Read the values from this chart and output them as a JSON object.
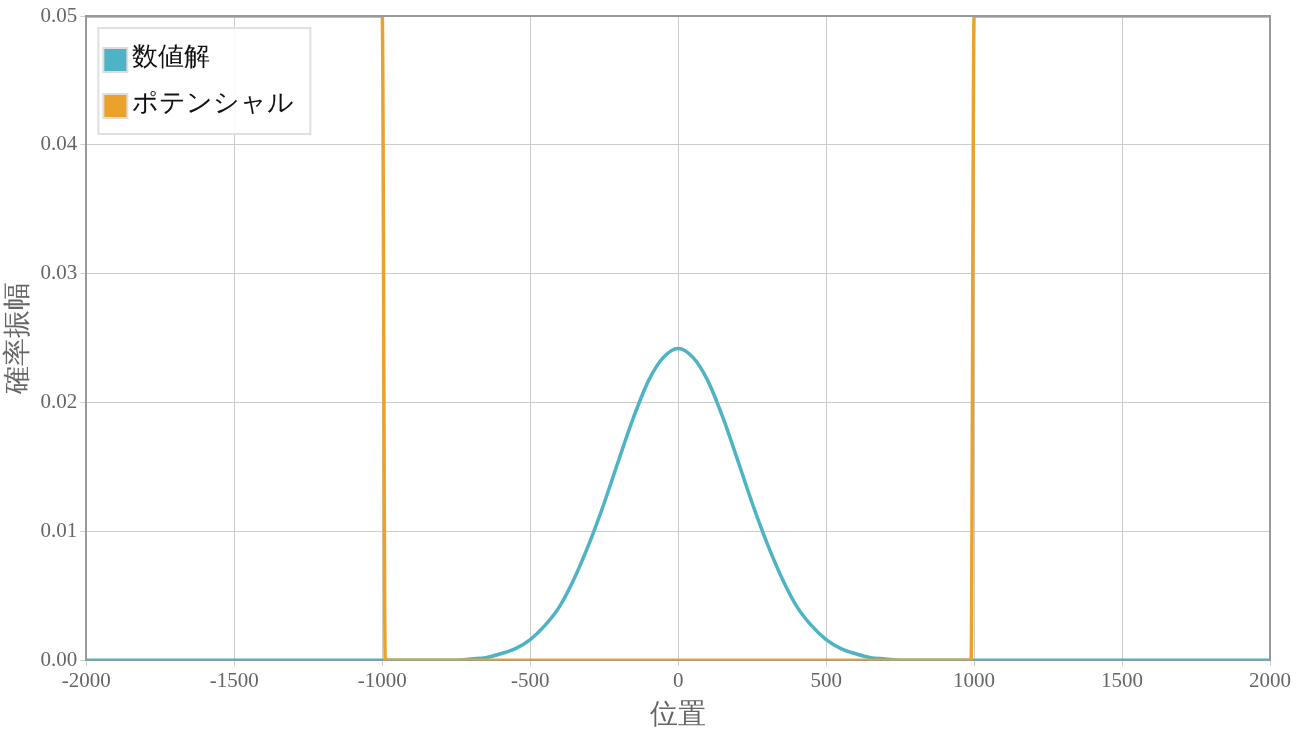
{
  "chart_data": {
    "type": "line",
    "xlabel": "位置",
    "ylabel": "確率振幅",
    "xlim": [
      -2000,
      2000
    ],
    "xticks": [
      -2000,
      -1500,
      -1000,
      -500,
      0,
      500,
      1000,
      1500,
      2000
    ],
    "ylim": [
      0,
      0.05
    ],
    "yticks": [
      {
        "value": 0,
        "label": "0.00"
      },
      0.01,
      0.02,
      0.03,
      0.04,
      0.05
    ],
    "grid": true,
    "legend": "top left",
    "marker": "none",
    "line_style": "solid",
    "series": [
      {
        "name": "数値解",
        "color": "#4db3c5",
        "x": [
          -2000,
          -1000,
          -800,
          -750,
          -700,
          -650,
          -600,
          -550,
          -500,
          -450,
          -400,
          -350,
          -300,
          -250,
          -200,
          -150,
          -100,
          -50,
          0,
          50,
          100,
          150,
          200,
          250,
          300,
          350,
          400,
          450,
          500,
          550,
          600,
          650,
          700,
          750,
          800,
          1000,
          2000
        ],
        "values": [
          0,
          0,
          0,
          0,
          0.0001,
          0.0002,
          0.0005,
          0.0009,
          0.0016,
          0.0027,
          0.0042,
          0.0064,
          0.0091,
          0.0122,
          0.0156,
          0.0189,
          0.0217,
          0.0235,
          0.0242,
          0.0235,
          0.0217,
          0.0189,
          0.0156,
          0.0122,
          0.0091,
          0.0064,
          0.0042,
          0.0027,
          0.0016,
          0.0009,
          0.0005,
          0.0002,
          0.0001,
          0,
          0,
          0,
          0
        ]
      },
      {
        "name": "ポテンシャル",
        "color": "#eba22a",
        "x": [
          -2000,
          -1000,
          -990,
          990,
          1000,
          2000
        ],
        "values": [
          0.05,
          0.05,
          0,
          0,
          0.05,
          0.05
        ]
      }
    ]
  }
}
